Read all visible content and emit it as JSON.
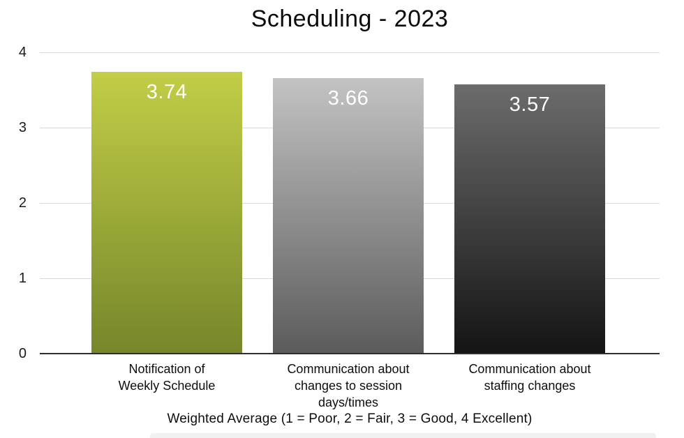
{
  "chart_data": {
    "type": "bar",
    "title": "Scheduling - 2023",
    "categories": [
      "Notification of Weekly Schedule",
      "Communication about changes to session days/times",
      "Communication about staffing changes"
    ],
    "categories_lines": [
      [
        "Notification of",
        "Weekly Schedule"
      ],
      [
        "Communication about",
        "changes to session",
        "days/times"
      ],
      [
        "Communication about",
        "staffing changes"
      ]
    ],
    "values": [
      3.74,
      3.66,
      3.57
    ],
    "value_labels": [
      "3.74",
      "3.66",
      "3.57"
    ],
    "xlabel": "Weighted Average (1 = Poor, 2 = Fair, 3 = Good, 4 Excellent)",
    "ylabel": "",
    "ylim": [
      0,
      4
    ],
    "yticks": [
      "4",
      "3",
      "2",
      "1",
      "0"
    ],
    "grid": true,
    "legend_position": "none",
    "bar_colors": [
      {
        "name": "olive-green-gradient",
        "top": "#c2ce47",
        "bottom": "#76862a"
      },
      {
        "name": "light-gray-gradient",
        "top": "#c3c3c3",
        "bottom": "#5b5b5b"
      },
      {
        "name": "dark-gray-gradient",
        "top": "#6c6c6c",
        "bottom": "#141414"
      }
    ],
    "colors": {
      "background": "#ffffff",
      "gridline": "#d9d9d9",
      "axis_line": "#2e2e2e",
      "value_label_text": "#ffffff",
      "text": "#111111"
    }
  }
}
